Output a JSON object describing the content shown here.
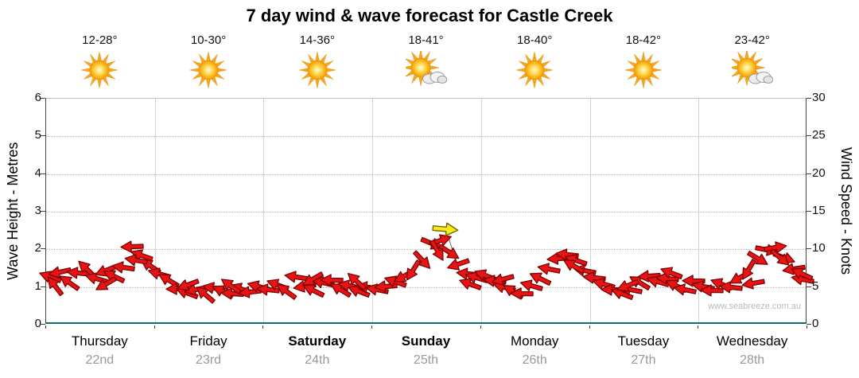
{
  "title": "7 day wind & wave forecast for Castle Creek",
  "watermark": "www.seabreeze.com.au",
  "colors": {
    "arrow_fill": "#e61414",
    "arrow_outline": "#7e0000",
    "special_arrow_fill": "#ffe81a",
    "special_arrow_outline": "#6e6e00",
    "baseline": "#0e6f6f",
    "grid": "#d4d4d4",
    "date_text": "#999999"
  },
  "days": [
    {
      "name": "Thursday",
      "date": "22nd",
      "temp": "12-28°",
      "icon": "sunny",
      "bold": false
    },
    {
      "name": "Friday",
      "date": "23rd",
      "temp": "10-30°",
      "icon": "sunny",
      "bold": false
    },
    {
      "name": "Saturday",
      "date": "24th",
      "temp": "14-36°",
      "icon": "sunny",
      "bold": true
    },
    {
      "name": "Sunday",
      "date": "25th",
      "temp": "18-41°",
      "icon": "partly-cloudy",
      "bold": true
    },
    {
      "name": "Monday",
      "date": "26th",
      "temp": "18-40°",
      "icon": "sunny",
      "bold": false
    },
    {
      "name": "Tuesday",
      "date": "27th",
      "temp": "18-42°",
      "icon": "sunny",
      "bold": false
    },
    {
      "name": "Wednesday",
      "date": "28th",
      "temp": "23-42°",
      "icon": "partly-cloudy",
      "bold": false
    }
  ],
  "axes": {
    "left_label": "Wave Height - Metres",
    "right_label": "Wind Speed - Knots",
    "left_ticks": [
      0,
      1,
      2,
      3,
      4,
      5,
      6
    ],
    "right_ticks": [
      0,
      5,
      10,
      15,
      20,
      25,
      30
    ]
  },
  "chart_data": {
    "type": "scatter",
    "title": "7 day wind & wave forecast for Castle Creek",
    "x_categories": [
      "Thursday 22nd",
      "Friday 23rd",
      "Saturday 24th",
      "Sunday 25th",
      "Monday 26th",
      "Tuesday 27th",
      "Wednesday 28th"
    ],
    "y_left": {
      "label": "Wave Height - Metres",
      "range": [
        0,
        6
      ]
    },
    "y_right": {
      "label": "Wind Speed - Knots",
      "range": [
        0,
        30
      ]
    },
    "grid": true,
    "wind_arrow_format": [
      "day_index",
      "day_fraction",
      "wind_speed_knots",
      "direction_deg"
    ],
    "wind_arrows": [
      [
        0,
        0.04,
        6.3,
        200
      ],
      [
        0,
        0.125,
        7.0,
        168
      ],
      [
        0,
        0.21,
        5.6,
        215
      ],
      [
        0,
        0.295,
        6.9,
        186
      ],
      [
        0,
        0.375,
        7.4,
        224
      ],
      [
        0,
        0.46,
        6.1,
        196
      ],
      [
        0,
        0.545,
        7.2,
        158
      ],
      [
        0,
        0.625,
        6.4,
        206
      ],
      [
        0,
        0.71,
        7.6,
        188
      ],
      [
        0,
        0.79,
        10.4,
        178
      ],
      [
        0,
        0.875,
        9.2,
        199
      ],
      [
        0,
        0.955,
        7.8,
        214
      ],
      [
        0,
        0.08,
        5.2,
        232
      ],
      [
        0,
        0.55,
        5.4,
        150
      ],
      [
        0,
        0.83,
        8.6,
        190
      ],
      [
        1,
        0.04,
        6.8,
        196
      ],
      [
        1,
        0.125,
        5.9,
        211
      ],
      [
        1,
        0.21,
        4.8,
        179
      ],
      [
        1,
        0.295,
        4.2,
        201
      ],
      [
        1,
        0.375,
        4.6,
        169
      ],
      [
        1,
        0.46,
        4.0,
        221
      ],
      [
        1,
        0.545,
        4.9,
        191
      ],
      [
        1,
        0.625,
        4.4,
        206
      ],
      [
        1,
        0.71,
        4.1,
        184
      ],
      [
        1,
        0.79,
        4.8,
        199
      ],
      [
        1,
        0.875,
        4.3,
        174
      ],
      [
        1,
        0.955,
        5.1,
        195
      ],
      [
        1,
        0.3,
        5.3,
        160
      ],
      [
        1,
        0.7,
        5.2,
        215
      ],
      [
        2,
        0.04,
        4.7,
        186
      ],
      [
        2,
        0.125,
        5.3,
        201
      ],
      [
        2,
        0.21,
        4.4,
        216
      ],
      [
        2,
        0.295,
        6.3,
        189
      ],
      [
        2,
        0.375,
        5.1,
        171
      ],
      [
        2,
        0.46,
        4.5,
        206
      ],
      [
        2,
        0.545,
        5.6,
        194
      ],
      [
        2,
        0.625,
        5.9,
        181
      ],
      [
        2,
        0.71,
        4.6,
        211
      ],
      [
        2,
        0.79,
        5.2,
        191
      ],
      [
        2,
        0.875,
        4.4,
        201
      ],
      [
        2,
        0.955,
        5.0,
        186
      ],
      [
        2,
        0.45,
        6.0,
        150
      ],
      [
        2,
        0.85,
        5.8,
        222
      ],
      [
        3,
        0.04,
        4.6,
        191
      ],
      [
        3,
        0.125,
        5.1,
        176
      ],
      [
        3,
        0.21,
        5.7,
        199
      ],
      [
        3,
        0.295,
        6.4,
        151
      ],
      [
        3,
        0.375,
        7.2,
        122
      ],
      [
        3,
        0.46,
        8.6,
        47
      ],
      [
        3,
        0.545,
        10.8,
        22
      ],
      [
        3,
        0.625,
        11.2,
        341
      ],
      [
        3,
        0.71,
        9.6,
        33
      ],
      [
        3,
        0.79,
        8.0,
        161
      ],
      [
        3,
        0.875,
        6.8,
        186
      ],
      [
        3,
        0.955,
        6.2,
        196
      ],
      [
        3,
        0.6,
        9.8,
        60
      ],
      [
        3,
        0.9,
        5.4,
        200
      ],
      [
        4,
        0.04,
        6.6,
        201
      ],
      [
        4,
        0.125,
        5.8,
        186
      ],
      [
        4,
        0.21,
        5.0,
        196
      ],
      [
        4,
        0.295,
        4.4,
        211
      ],
      [
        4,
        0.375,
        4.1,
        181
      ],
      [
        4,
        0.46,
        5.2,
        196
      ],
      [
        4,
        0.545,
        6.1,
        206
      ],
      [
        4,
        0.625,
        7.4,
        191
      ],
      [
        4,
        0.71,
        8.8,
        176
      ],
      [
        4,
        0.79,
        9.3,
        186
      ],
      [
        4,
        0.875,
        8.6,
        199
      ],
      [
        4,
        0.955,
        7.2,
        191
      ],
      [
        4,
        0.2,
        6.0,
        165
      ],
      [
        4,
        0.85,
        7.8,
        210
      ],
      [
        5,
        0.04,
        6.2,
        186
      ],
      [
        5,
        0.125,
        5.4,
        196
      ],
      [
        5,
        0.21,
        4.6,
        181
      ],
      [
        5,
        0.295,
        4.1,
        201
      ],
      [
        5,
        0.375,
        4.7,
        191
      ],
      [
        5,
        0.46,
        5.6,
        211
      ],
      [
        5,
        0.545,
        6.4,
        176
      ],
      [
        5,
        0.625,
        5.7,
        196
      ],
      [
        5,
        0.71,
        6.1,
        186
      ],
      [
        5,
        0.79,
        5.2,
        206
      ],
      [
        5,
        0.875,
        4.6,
        191
      ],
      [
        5,
        0.955,
        5.8,
        181
      ],
      [
        5,
        0.35,
        5.2,
        158
      ],
      [
        5,
        0.75,
        6.9,
        201
      ],
      [
        6,
        0.04,
        5.1,
        191
      ],
      [
        6,
        0.125,
        4.5,
        181
      ],
      [
        6,
        0.21,
        5.4,
        201
      ],
      [
        6,
        0.295,
        5.0,
        186
      ],
      [
        6,
        0.375,
        6.2,
        151
      ],
      [
        6,
        0.46,
        7.3,
        121
      ],
      [
        6,
        0.545,
        8.8,
        31
      ],
      [
        6,
        0.625,
        9.9,
        11
      ],
      [
        6,
        0.71,
        10.2,
        351
      ],
      [
        6,
        0.79,
        8.9,
        21
      ],
      [
        6,
        0.875,
        7.4,
        171
      ],
      [
        6,
        0.955,
        6.0,
        191
      ],
      [
        6,
        0.5,
        5.5,
        170
      ],
      [
        6,
        0.75,
        8.9,
        40
      ],
      [
        6,
        0.95,
        6.8,
        205
      ]
    ],
    "special_arrow": {
      "day": 3,
      "frac": 0.67,
      "knots": 12.7,
      "dir": 5
    },
    "marker_line": {
      "from": [
        3,
        0.7,
        11.6
      ],
      "to": [
        3,
        0.8,
        7.0
      ]
    }
  }
}
